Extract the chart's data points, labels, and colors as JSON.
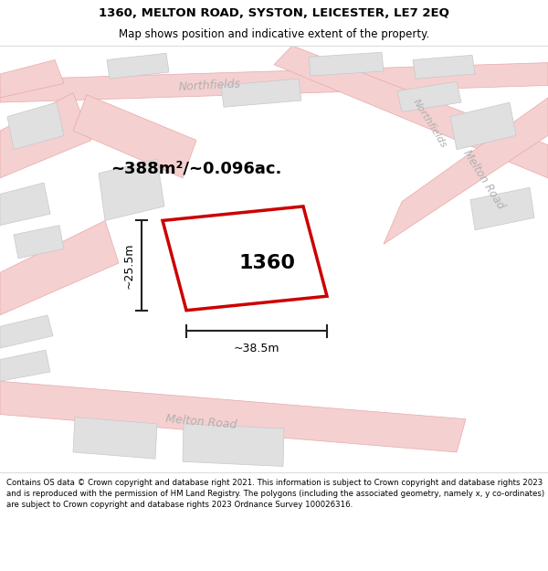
{
  "title_line1": "1360, MELTON ROAD, SYSTON, LEICESTER, LE7 2EQ",
  "title_line2": "Map shows position and indicative extent of the property.",
  "footer_text": "Contains OS data © Crown copyright and database right 2021. This information is subject to Crown copyright and database rights 2023 and is reproduced with the permission of HM Land Registry. The polygons (including the associated geometry, namely x, y co-ordinates) are subject to Crown copyright and database rights 2023 Ordnance Survey 100026316.",
  "area_label": "~388m²/~0.096ac.",
  "property_label": "1360",
  "width_label": "~38.5m",
  "height_label": "~25.5m",
  "road_color": "#f5d0d0",
  "road_edge_color": "#e8a8a8",
  "building_color": "#e0e0e0",
  "building_outline": "#c8c8c8",
  "property_fill": "#f8f0f0",
  "property_outline": "#cc0000",
  "street_label_color": "#b0b0b0",
  "map_bg": "#f8f8f8",
  "dim_color": "#222222",
  "title_fontsize": 9.5,
  "subtitle_fontsize": 8.5,
  "footer_fontsize": 6.2
}
